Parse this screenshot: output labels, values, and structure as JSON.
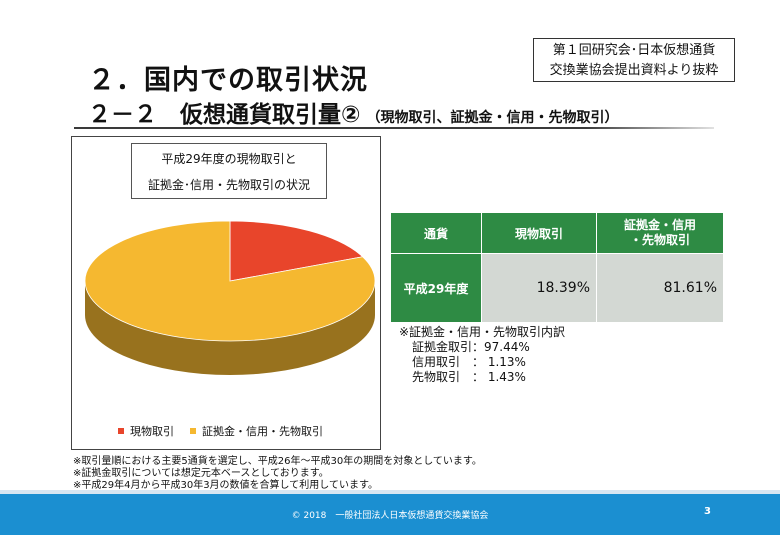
{
  "source_note": [
    "第１回研究会･日本仮想通貨",
    "交換業協会提出資料より抜粋"
  ],
  "title_main": "２．国内での取引状況",
  "title_sub": "２－２　仮想通貨取引量②",
  "title_sub_paren": "（現物取引、証拠金・信用・先物取引）",
  "chart_data": {
    "type": "pie",
    "title_lines": [
      "平成29年度の現物取引と",
      "証拠金･信用・先物取引の状況"
    ],
    "slices": [
      {
        "label": "現物取引",
        "value": 18.39,
        "color": "#e8452b"
      },
      {
        "label": "証拠金・信用・先物取引",
        "value": 81.61,
        "color": "#f5b830"
      }
    ],
    "legend_position": "bottom"
  },
  "table": {
    "headers": [
      "通貨",
      "現物取引",
      "証拠金・信用\n・先物取引"
    ],
    "rows": [
      {
        "label": "平成29年度",
        "values": [
          "18.39%",
          "81.61%"
        ]
      }
    ]
  },
  "breakdown": {
    "heading": "※証拠金・信用・先物取引内訳",
    "items": [
      "証拠金取引：97.44%",
      "信用取引　：  1.13%",
      "先物取引　：  1.43%"
    ]
  },
  "footnotes": [
    "※取引量順における主要5通貨を選定し、平成26年～平成30年の期間を対象としています。",
    "※証拠金取引については想定元本ベースとしております。",
    "※平成29年4月から平成30年3月の数値を合算して利用しています。"
  ],
  "footer": {
    "copyright": "© 2018　一般社団法人日本仮想通貨交換業協会",
    "page_number": "3"
  },
  "colors": {
    "header_green": "#2e8b44",
    "cell_gray": "#d3d8d3",
    "footer_blue": "#1b8fd1"
  }
}
